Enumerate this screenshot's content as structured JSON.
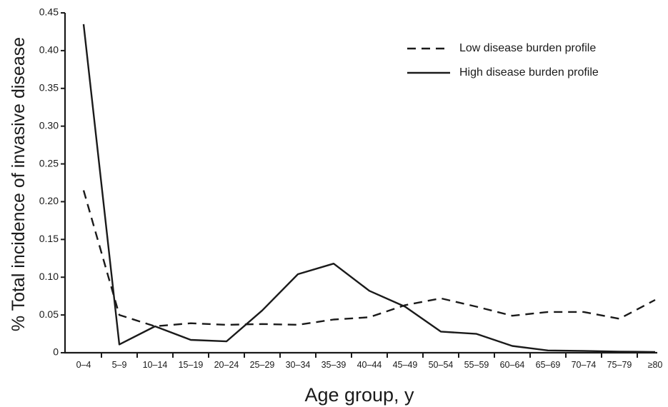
{
  "chart_data": {
    "type": "line",
    "title": "",
    "xlabel": "Age group, y",
    "ylabel": "% Total incidence of invasive disease",
    "ylim": [
      0,
      0.45
    ],
    "yticks": [
      "0",
      "0.05",
      "0.10",
      "0.15",
      "0.20",
      "0.25",
      "0.30",
      "0.35",
      "0.40",
      "0.45"
    ],
    "ytick_values": [
      0,
      0.05,
      0.1,
      0.15,
      0.2,
      0.25,
      0.3,
      0.35,
      0.4,
      0.45
    ],
    "categories": [
      "0–4",
      "5–9",
      "10–14",
      "15–19",
      "20–24",
      "25–29",
      "30–34",
      "35–39",
      "40–44",
      "45–49",
      "50–54",
      "55–59",
      "60–64",
      "65–69",
      "70–74",
      "75–79",
      "≥80"
    ],
    "grid": false,
    "legend_position": "top-right",
    "series": [
      {
        "name": "Low disease burden profile",
        "style": "dashed",
        "color": "#1a1a1a",
        "values": [
          0.215,
          0.05,
          0.035,
          0.039,
          0.037,
          0.038,
          0.037,
          0.044,
          0.047,
          0.063,
          0.072,
          0.061,
          0.049,
          0.054,
          0.054,
          0.045,
          0.07
        ]
      },
      {
        "name": "High disease burden profile",
        "style": "solid",
        "color": "#1a1a1a",
        "values": [
          0.435,
          0.011,
          0.035,
          0.017,
          0.015,
          0.056,
          0.104,
          0.118,
          0.082,
          0.061,
          0.028,
          0.025,
          0.009,
          0.003,
          0.0025,
          0.0015,
          0.001
        ]
      }
    ]
  }
}
